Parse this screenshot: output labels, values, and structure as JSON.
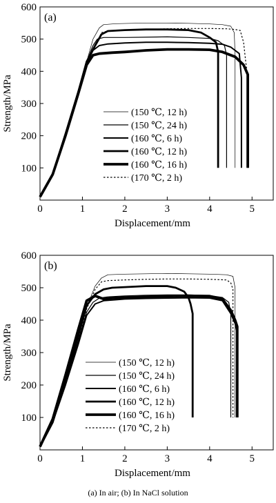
{
  "caption": "(a) In air; (b) In NaCl solution",
  "chart_data": [
    {
      "type": "line",
      "panel_label": "(a)",
      "xlabel": "Displacement/mm",
      "ylabel": "Strength/MPa",
      "xlim": [
        0,
        5.5
      ],
      "ylim": [
        0,
        600
      ],
      "xticks": [
        "0",
        "1",
        "2",
        "3",
        "4",
        "5"
      ],
      "yticks": [
        "100",
        "200",
        "300",
        "400",
        "500",
        "600"
      ],
      "grid": false,
      "legend_position": "lower-right",
      "series": [
        {
          "name": "(150 ℃, 12 h)",
          "style": "thin",
          "x": [
            0,
            0.3,
            0.6,
            0.9,
            1.1,
            1.25,
            1.4,
            1.5,
            1.8,
            2.5,
            3.0,
            3.5,
            4.0,
            4.3,
            4.5,
            4.58,
            4.6,
            4.6
          ],
          "y": [
            10,
            80,
            200,
            330,
            430,
            500,
            535,
            545,
            548,
            550,
            550,
            549,
            547,
            545,
            540,
            520,
            450,
            100
          ]
        },
        {
          "name": "(150 ℃, 24 h)",
          "style": "medium-thin",
          "x": [
            0,
            0.3,
            0.6,
            0.9,
            1.1,
            1.25,
            1.35,
            1.5,
            2.0,
            2.5,
            3.0,
            3.5,
            4.0,
            4.2,
            4.35,
            4.4,
            4.4
          ],
          "y": [
            10,
            85,
            210,
            340,
            430,
            480,
            500,
            505,
            505,
            506,
            507,
            505,
            502,
            495,
            480,
            450,
            100
          ]
        },
        {
          "name": "(160 ℃, 6 h)",
          "style": "medium",
          "x": [
            0,
            0.3,
            0.6,
            0.9,
            1.1,
            1.25,
            1.4,
            1.6,
            2.0,
            2.5,
            3.0,
            3.5,
            4.0,
            4.3,
            4.5,
            4.6,
            4.7,
            4.75,
            4.75
          ],
          "y": [
            10,
            80,
            205,
            330,
            425,
            465,
            480,
            485,
            488,
            490,
            490,
            489,
            487,
            484,
            475,
            465,
            455,
            380,
            100
          ]
        },
        {
          "name": "(160 ℃, 12 h)",
          "style": "thick",
          "x": [
            0,
            0.3,
            0.6,
            0.9,
            1.1,
            1.3,
            1.45,
            1.6,
            2.0,
            2.5,
            3.0,
            3.5,
            3.8,
            4.0,
            4.15,
            4.2,
            4.2
          ],
          "y": [
            10,
            80,
            205,
            335,
            430,
            480,
            515,
            525,
            528,
            530,
            530,
            528,
            520,
            505,
            490,
            460,
            100
          ]
        },
        {
          "name": "(160 ℃, 16 h)",
          "style": "thickest",
          "x": [
            0,
            0.3,
            0.6,
            0.9,
            1.1,
            1.25,
            1.4,
            1.7,
            2.0,
            2.5,
            3.0,
            3.5,
            4.0,
            4.3,
            4.6,
            4.8,
            4.9,
            4.9
          ],
          "y": [
            10,
            80,
            200,
            330,
            420,
            450,
            455,
            458,
            460,
            465,
            468,
            468,
            467,
            460,
            445,
            420,
            390,
            100
          ]
        },
        {
          "name": "(170 ℃, 2 h)",
          "style": "dotted",
          "x": [
            0,
            0.3,
            0.6,
            0.9,
            1.1,
            1.3,
            1.45,
            1.6,
            2.0,
            2.5,
            3.0,
            3.5,
            4.0,
            4.4,
            4.6,
            4.72,
            4.8,
            4.85,
            4.9,
            4.9
          ],
          "y": [
            10,
            80,
            205,
            335,
            425,
            480,
            520,
            525,
            528,
            530,
            532,
            533,
            533,
            532,
            530,
            527,
            490,
            430,
            380,
            100
          ]
        }
      ]
    },
    {
      "type": "line",
      "panel_label": "(b)",
      "xlabel": "Displacement/mm",
      "ylabel": "Strength/MPa",
      "xlim": [
        0,
        5.5
      ],
      "ylim": [
        0,
        600
      ],
      "xticks": [
        "0",
        "1",
        "2",
        "3",
        "4",
        "5"
      ],
      "yticks": [
        "100",
        "200",
        "300",
        "400",
        "500",
        "600"
      ],
      "grid": false,
      "legend_position": "lower-right",
      "series": [
        {
          "name": "(150 ℃, 12 h)",
          "style": "thin",
          "x": [
            0,
            0.3,
            0.6,
            0.9,
            1.1,
            1.3,
            1.45,
            1.6,
            2.0,
            2.5,
            3.0,
            3.5,
            4.0,
            4.4,
            4.55,
            4.6,
            4.6
          ],
          "y": [
            10,
            85,
            210,
            345,
            440,
            505,
            530,
            540,
            542,
            543,
            544,
            543,
            542,
            540,
            535,
            500,
            100
          ]
        },
        {
          "name": "(150 ℃, 24 h)",
          "style": "medium-thin",
          "x": [
            0,
            0.3,
            0.6,
            0.9,
            1.1,
            1.25,
            1.4,
            1.6,
            2.0,
            2.5,
            3.0,
            3.5,
            4.0,
            4.3,
            4.45,
            4.5,
            4.5
          ],
          "y": [
            10,
            85,
            205,
            335,
            425,
            455,
            468,
            472,
            475,
            477,
            478,
            478,
            476,
            470,
            455,
            420,
            100
          ]
        },
        {
          "name": "(160 ℃, 6 h)",
          "style": "medium",
          "x": [
            0,
            0.3,
            0.6,
            0.9,
            1.1,
            1.3,
            1.5,
            1.8,
            2.0,
            2.5,
            3.0,
            3.5,
            4.0,
            4.3,
            4.5,
            4.6,
            4.65,
            4.65
          ],
          "y": [
            10,
            85,
            200,
            325,
            415,
            450,
            460,
            463,
            465,
            467,
            468,
            469,
            468,
            460,
            420,
            390,
            360,
            100
          ]
        },
        {
          "name": "(160 ℃, 12 h)",
          "style": "thick",
          "x": [
            0,
            0.3,
            0.6,
            0.9,
            1.1,
            1.3,
            1.5,
            1.7,
            2.0,
            2.5,
            3.0,
            3.2,
            3.4,
            3.5,
            3.55,
            3.6,
            3.6
          ],
          "y": [
            10,
            85,
            215,
            350,
            445,
            480,
            495,
            500,
            502,
            505,
            505,
            500,
            488,
            470,
            450,
            420,
            100
          ]
        },
        {
          "name": "(160 ℃, 16 h)",
          "style": "thickest",
          "x": [
            0,
            0.3,
            0.6,
            0.9,
            1.1,
            1.3,
            1.5,
            1.7,
            2.0,
            2.5,
            3.0,
            3.5,
            4.0,
            4.3,
            4.5,
            4.6,
            4.65,
            4.65
          ],
          "y": [
            10,
            95,
            230,
            370,
            460,
            475,
            465,
            468,
            470,
            472,
            474,
            475,
            474,
            465,
            430,
            400,
            380,
            100
          ]
        },
        {
          "name": "(170 ℃, 2 h)",
          "style": "dotted",
          "x": [
            0,
            0.3,
            0.6,
            0.9,
            1.1,
            1.3,
            1.45,
            1.6,
            2.0,
            2.5,
            3.0,
            3.5,
            4.0,
            4.4,
            4.5,
            4.55,
            4.55
          ],
          "y": [
            10,
            85,
            210,
            340,
            435,
            495,
            518,
            522,
            524,
            526,
            527,
            527,
            526,
            524,
            515,
            495,
            100
          ]
        }
      ]
    }
  ]
}
